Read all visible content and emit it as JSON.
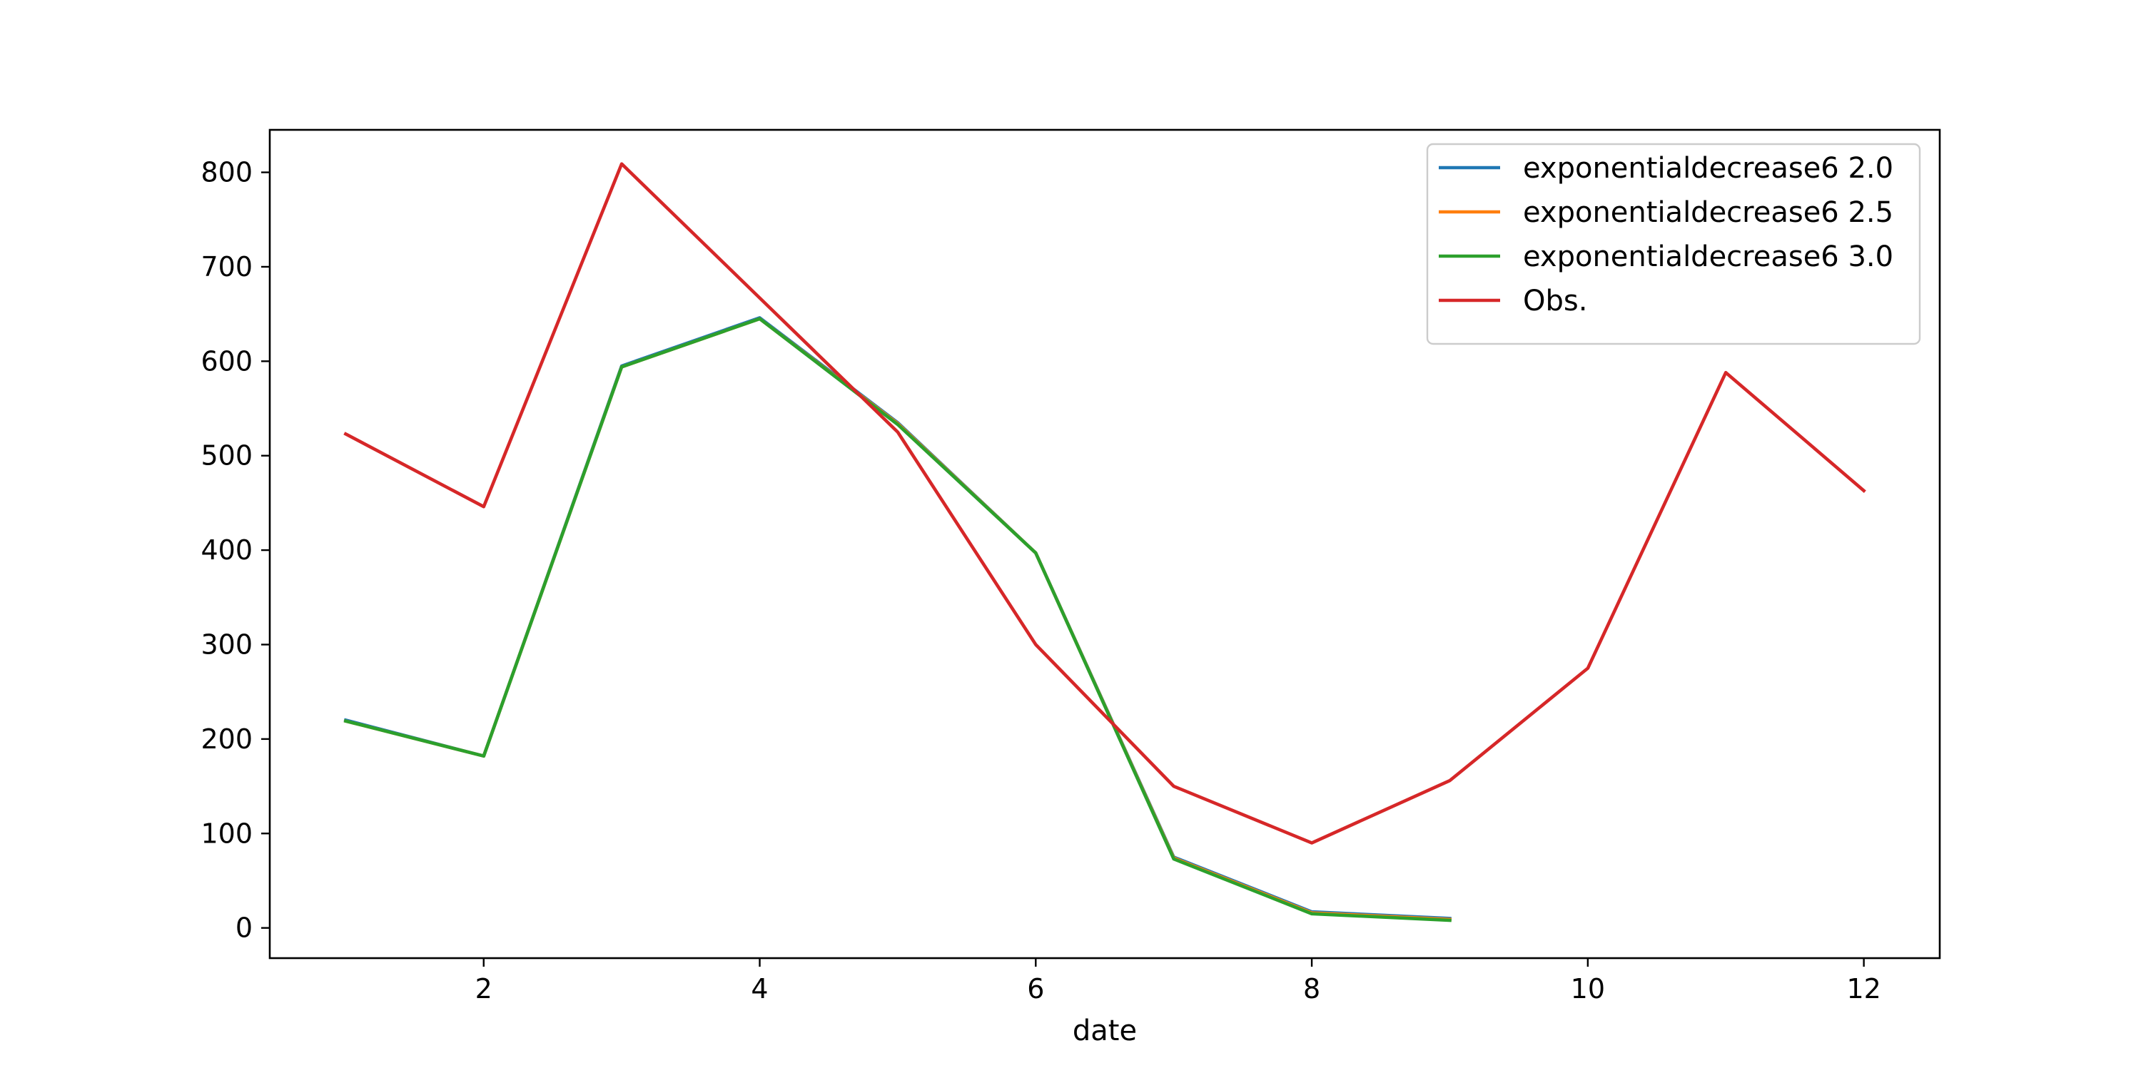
{
  "chart_data": {
    "type": "line",
    "title": "",
    "xlabel": "date",
    "ylabel": "",
    "xlim": [
      0.45,
      12.55
    ],
    "ylim": [
      -32,
      845
    ],
    "xticks": [
      2,
      4,
      6,
      8,
      10,
      12
    ],
    "yticks": [
      0,
      100,
      200,
      300,
      400,
      500,
      600,
      700,
      800
    ],
    "grid": false,
    "legend_position": "top-right",
    "series": [
      {
        "name": "exponentialdecrease6 2.0",
        "color": "#1f77b4",
        "x": [
          1,
          2,
          3,
          4,
          5,
          6,
          7,
          8,
          9
        ],
        "y": [
          220,
          182,
          595,
          646,
          535,
          397,
          75,
          17,
          10
        ]
      },
      {
        "name": "exponentialdecrease6 2.5",
        "color": "#ff7f0e",
        "x": [
          1,
          2,
          3,
          4,
          5,
          6,
          7,
          8,
          9
        ],
        "y": [
          219,
          182,
          594,
          645,
          534,
          397,
          74,
          16,
          9
        ]
      },
      {
        "name": "exponentialdecrease6 3.0",
        "color": "#2ca02c",
        "x": [
          1,
          2,
          3,
          4,
          5,
          6,
          7,
          8,
          9
        ],
        "y": [
          219,
          182,
          594,
          645,
          533,
          397,
          73,
          15,
          8
        ]
      },
      {
        "name": "Obs.",
        "color": "#d62728",
        "x": [
          1,
          2,
          3,
          4,
          5,
          6,
          7,
          8,
          9,
          10,
          11,
          12
        ],
        "y": [
          523,
          446,
          809,
          667,
          525,
          300,
          150,
          90,
          156,
          275,
          588,
          463
        ]
      }
    ]
  }
}
